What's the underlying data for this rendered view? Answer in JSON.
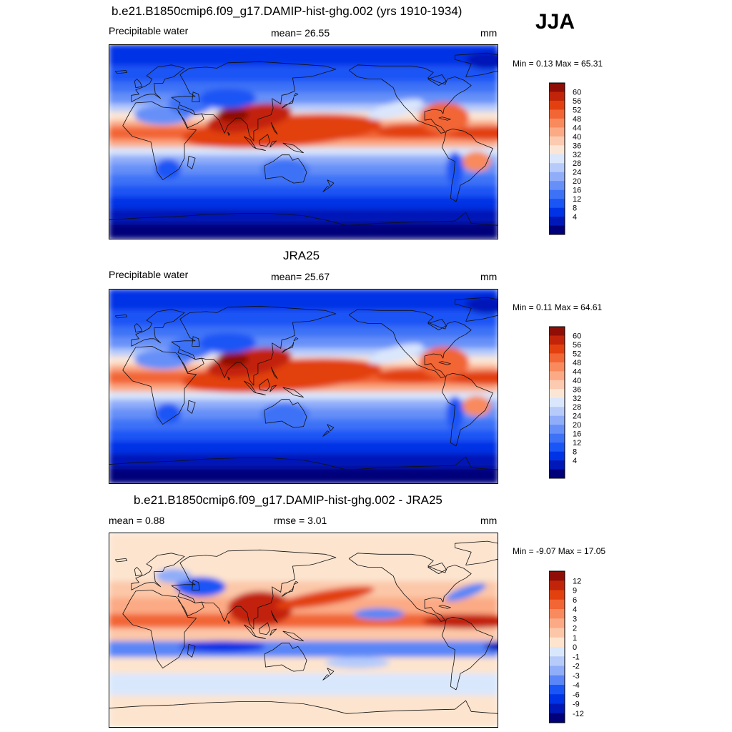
{
  "season": "JJA",
  "colors": {
    "model_levels": [
      "#00007a",
      "#0018b8",
      "#0033e6",
      "#1a55f5",
      "#3d72f7",
      "#6690f8",
      "#8fadf9",
      "#b6cbfa",
      "#dae6fc",
      "#fbe6d6",
      "#fccab0",
      "#fbaa85",
      "#f88a5d",
      "#f26534",
      "#e2410f",
      "#c2240a",
      "#8f0e06"
    ],
    "diff_levels": [
      "#00007a",
      "#0018b8",
      "#0033e6",
      "#1a55f5",
      "#5a86f7",
      "#8fadf9",
      "#b6cbfa",
      "#d9e7fd",
      "#fde4cf",
      "#fcc7a8",
      "#fbaa85",
      "#f88a5d",
      "#f26534",
      "#e2410f",
      "#c2240a",
      "#8f0e06"
    ],
    "land": "#000000"
  },
  "panels": [
    {
      "id": "model",
      "title": "b.e21.B1850cmip6.f09_g17.DAMIP-hist-ghg.002 (yrs 1910-1934)",
      "left_label": "Precipitable water",
      "center_label": "mean=  26.55",
      "right_label": "mm",
      "min_max": "Min =   0.13 Max =  65.31",
      "colorbar_labels": [
        "60",
        "56",
        "52",
        "48",
        "44",
        "40",
        "36",
        "32",
        "28",
        "24",
        "20",
        "16",
        "12",
        "8",
        "4"
      ]
    },
    {
      "id": "obs",
      "title": "JRA25",
      "left_label": "Precipitable water",
      "center_label": "mean=  25.67",
      "right_label": "mm",
      "min_max": "Min =   0.11 Max =  64.61",
      "colorbar_labels": [
        "60",
        "56",
        "52",
        "48",
        "44",
        "40",
        "36",
        "32",
        "28",
        "24",
        "20",
        "16",
        "12",
        "8",
        "4"
      ]
    },
    {
      "id": "diff",
      "title": "b.e21.B1850cmip6.f09_g17.DAMIP-hist-ghg.002 - JRA25",
      "left_label": "mean =   0.88",
      "center_label": "rmse =   3.01",
      "right_label": "mm",
      "min_max": "Min =  -9.07 Max =  17.05",
      "colorbar_labels": [
        "12",
        "9",
        "6",
        "4",
        "3",
        "2",
        "1",
        "0",
        "-1",
        "-2",
        "-3",
        "-4",
        "-6",
        "-9",
        "-12"
      ]
    }
  ]
}
